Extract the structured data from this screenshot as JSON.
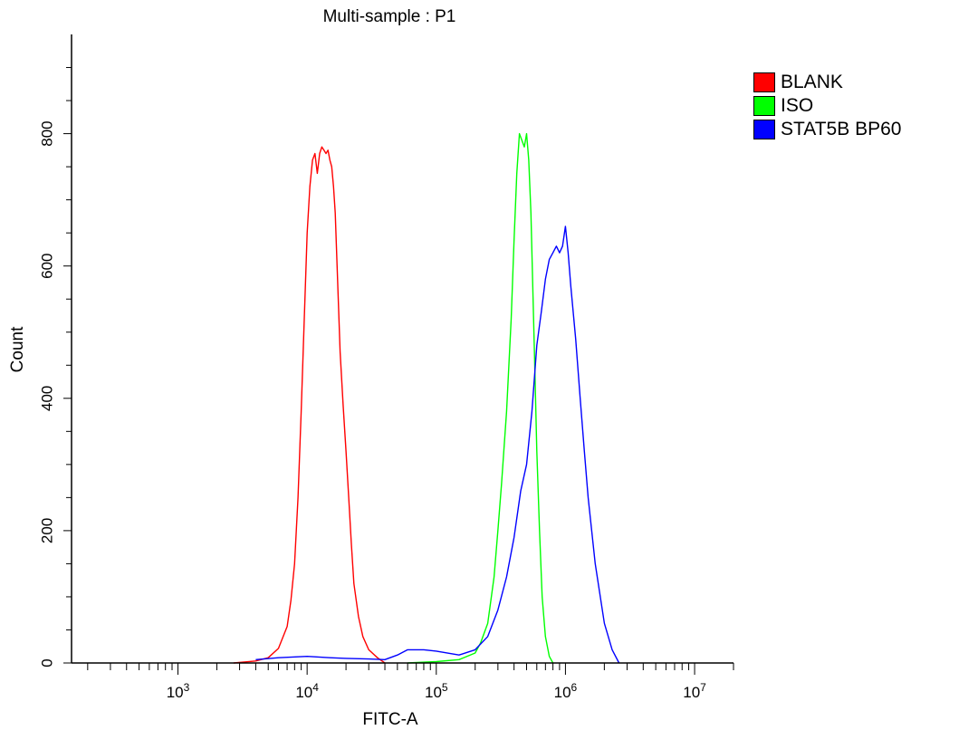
{
  "chart_data": {
    "type": "line",
    "title": "Multi-sample : P1",
    "xlabel": "FITC-A",
    "ylabel": "Count",
    "x_scale": "log",
    "xlim": [
      150,
      20000000
    ],
    "ylim": [
      0,
      950
    ],
    "x_ticks": [
      {
        "value": 1000,
        "base": "10",
        "exp": "3"
      },
      {
        "value": 10000,
        "base": "10",
        "exp": "4"
      },
      {
        "value": 100000,
        "base": "10",
        "exp": "5"
      },
      {
        "value": 1000000,
        "base": "10",
        "exp": "6"
      },
      {
        "value": 10000000,
        "base": "10",
        "exp": "7"
      }
    ],
    "y_ticks": [
      0,
      200,
      400,
      600,
      800
    ],
    "grid": false,
    "legend_position": "right",
    "series": [
      {
        "name": "BLANK",
        "color": "#ff0000",
        "x": [
          2700,
          4000,
          5000,
          6000,
          7000,
          7500,
          8000,
          8500,
          9000,
          9500,
          10000,
          10500,
          11000,
          11500,
          12000,
          12500,
          13000,
          13500,
          14000,
          14500,
          15000,
          15500,
          16000,
          16500,
          17000,
          17500,
          18000,
          19000,
          20000,
          21000,
          22000,
          23000,
          25000,
          27000,
          30000,
          35000,
          40000
        ],
        "y": [
          0,
          3,
          8,
          22,
          55,
          95,
          150,
          250,
          380,
          520,
          650,
          720,
          760,
          770,
          740,
          770,
          780,
          775,
          770,
          775,
          760,
          750,
          720,
          680,
          610,
          540,
          470,
          390,
          320,
          250,
          180,
          120,
          70,
          40,
          20,
          8,
          0
        ]
      },
      {
        "name": "ISO",
        "color": "#00ff00",
        "x": [
          60000,
          100000,
          150000,
          200000,
          220000,
          250000,
          280000,
          300000,
          320000,
          350000,
          380000,
          400000,
          420000,
          440000,
          460000,
          480000,
          500000,
          520000,
          540000,
          560000,
          580000,
          600000,
          630000,
          660000,
          700000,
          750000,
          800000
        ],
        "y": [
          0,
          2,
          5,
          15,
          30,
          60,
          130,
          200,
          270,
          380,
          520,
          640,
          740,
          800,
          790,
          780,
          800,
          760,
          680,
          560,
          440,
          320,
          200,
          100,
          40,
          10,
          0
        ]
      },
      {
        "name": "STAT5B BP60",
        "color": "#0000ff",
        "x": [
          4000,
          6000,
          10000,
          15000,
          20000,
          30000,
          40000,
          50000,
          60000,
          80000,
          100000,
          150000,
          200000,
          250000,
          300000,
          350000,
          400000,
          450000,
          500000,
          550000,
          600000,
          650000,
          700000,
          750000,
          800000,
          850000,
          900000,
          950000,
          1000000,
          1050000,
          1100000,
          1200000,
          1300000,
          1400000,
          1500000,
          1700000,
          2000000,
          2300000,
          2600000
        ],
        "y": [
          5,
          8,
          10,
          8,
          7,
          6,
          5,
          12,
          20,
          20,
          18,
          12,
          20,
          40,
          80,
          130,
          190,
          260,
          300,
          380,
          480,
          530,
          580,
          610,
          620,
          630,
          620,
          630,
          660,
          620,
          570,
          490,
          400,
          320,
          250,
          150,
          60,
          20,
          0
        ]
      }
    ]
  }
}
